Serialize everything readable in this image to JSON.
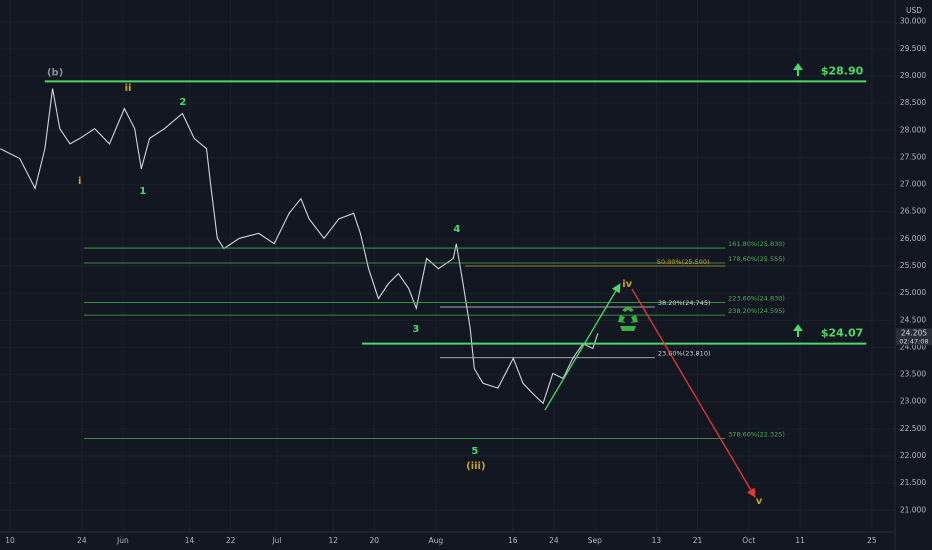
{
  "chart_data": {
    "type": "line",
    "currency": "USD",
    "color": "#d1d4dc",
    "x": [
      -1.9,
      1.9,
      4.9,
      6.8,
      8.3,
      9.7,
      11.7,
      13.6,
      16.5,
      19.4,
      22.3,
      24.3,
      25.6,
      27.2,
      30.1,
      33.6,
      35.9,
      38.3,
      39.2,
      40.4,
      41.7,
      44.7,
      48.5,
      51.5,
      54.4,
      56.7,
      58.3,
      61.2,
      64.1,
      67.0,
      68.3,
      69.9,
      71.8,
      73.8,
      75.7,
      77.7,
      79.2,
      81.2,
      83.5,
      86.4,
      87.0,
      88.3,
      89.7,
      90.5,
      92.2,
      95.1,
      98.1,
      100.0,
      101.9,
      103.9,
      105.8,
      107.8,
      109.7,
      111.7,
      113.6,
      114.6
    ],
    "values": [
      27.66,
      27.48,
      26.93,
      27.66,
      28.77,
      28.03,
      27.75,
      27.85,
      28.03,
      27.75,
      28.4,
      28.03,
      27.29,
      27.85,
      28.03,
      28.31,
      27.85,
      27.66,
      26.93,
      26.01,
      25.82,
      26.01,
      26.1,
      25.91,
      26.47,
      26.74,
      26.37,
      26.01,
      26.37,
      26.47,
      26.1,
      25.45,
      24.9,
      25.18,
      25.36,
      25.09,
      24.72,
      25.64,
      25.45,
      25.64,
      25.91,
      25.18,
      24.35,
      23.61,
      23.34,
      23.25,
      23.8,
      23.34,
      23.15,
      22.97,
      23.52,
      23.43,
      23.8,
      24.07,
      23.98,
      24.26
    ],
    "xlim": [
      -1.95,
      172.5
    ],
    "ylim": [
      20.6,
      30.4
    ],
    "xticks": [
      {
        "value": 0,
        "label": "10"
      },
      {
        "value": 14,
        "label": "24"
      },
      {
        "value": 22,
        "label": "Jun"
      },
      {
        "value": 35,
        "label": "14"
      },
      {
        "value": 43,
        "label": "22"
      },
      {
        "value": 52,
        "label": "Jul"
      },
      {
        "value": 63,
        "label": "12"
      },
      {
        "value": 71,
        "label": "20"
      },
      {
        "value": 83,
        "label": "Aug"
      },
      {
        "value": 98,
        "label": "16"
      },
      {
        "value": 106,
        "label": "24"
      },
      {
        "value": 114,
        "label": "Sep"
      },
      {
        "value": 126,
        "label": "13"
      },
      {
        "value": 134,
        "label": "21"
      },
      {
        "value": 144,
        "label": "Oct"
      },
      {
        "value": 154,
        "label": "11"
      },
      {
        "value": 168,
        "label": "25"
      }
    ],
    "yticks": [
      {
        "value": 21,
        "label": "21.000"
      },
      {
        "value": 21.5,
        "label": "21.500"
      },
      {
        "value": 22,
        "label": "22.000"
      },
      {
        "value": 22.5,
        "label": "22.500"
      },
      {
        "value": 23,
        "label": "23.000"
      },
      {
        "value": 23.5,
        "label": "23.500"
      },
      {
        "value": 24,
        "label": "24.000"
      },
      {
        "value": 24.5,
        "label": "24.500"
      },
      {
        "value": 25,
        "label": "25.000"
      },
      {
        "value": 25.5,
        "label": "25.500"
      },
      {
        "value": 26,
        "label": "26.000"
      },
      {
        "value": 26.5,
        "label": "26.500"
      },
      {
        "value": 27,
        "label": "27.000"
      },
      {
        "value": 27.5,
        "label": "27.500"
      },
      {
        "value": 28,
        "label": "28.000"
      },
      {
        "value": 28.5,
        "label": "28.500"
      },
      {
        "value": 29,
        "label": "29.000"
      },
      {
        "value": 29.5,
        "label": "29.500"
      },
      {
        "value": 30,
        "label": "30.000"
      }
    ],
    "grid": true,
    "key_levels": [
      {
        "value": 28.9,
        "label": "$28.90",
        "x": [
          6.8,
          166.9
        ]
      },
      {
        "value": 24.07,
        "label": "$24.07",
        "x": [
          68.6,
          166.9
        ]
      }
    ],
    "fib_levels": [
      {
        "value": 25.83,
        "label": "161.80%(25.830)",
        "x": [
          14.4,
          139.4
        ],
        "color": "#4caf50"
      },
      {
        "value": 25.555,
        "label": "178.60%(25.555)",
        "x": [
          14.4,
          139.4
        ],
        "color": "#4caf50"
      },
      {
        "value": 24.83,
        "label": "223.60%(24.830)",
        "x": [
          14.4,
          139.4
        ],
        "color": "#4caf50"
      },
      {
        "value": 24.595,
        "label": "238.20%(24.595)",
        "x": [
          14.4,
          139.4
        ],
        "color": "#4caf50"
      },
      {
        "value": 22.325,
        "label": "378.60%(22.325)",
        "x": [
          14.4,
          139.4
        ],
        "color": "#4caf50"
      },
      {
        "value": 25.5,
        "label": "50.00%(25.500)",
        "x": [
          88.7,
          139.4
        ],
        "color": "#c9a227"
      },
      {
        "value": 24.745,
        "label": "38.20%(24.745)",
        "x": [
          83.8,
          125.7
        ],
        "color": "#d1d4dc"
      },
      {
        "value": 23.81,
        "label": "23.60%(23.810)",
        "x": [
          83.8,
          125.7
        ],
        "color": "#d1d4dc"
      }
    ],
    "annotations": [
      {
        "text": "(b)",
        "x": 8.8,
        "y": 29.06,
        "color": "#8a8d96"
      },
      {
        "text": "ii",
        "x": 23.0,
        "y": 28.78,
        "color": "#c9a227"
      },
      {
        "text": "i",
        "x": 13.6,
        "y": 27.07,
        "color": "#c9a227"
      },
      {
        "text": "1",
        "x": 25.9,
        "y": 26.88,
        "color": "#4cd964"
      },
      {
        "text": "2",
        "x": 33.7,
        "y": 28.52,
        "color": "#4cd964"
      },
      {
        "text": "3",
        "x": 79.1,
        "y": 24.34,
        "color": "#4cd964"
      },
      {
        "text": "4",
        "x": 87.1,
        "y": 26.18,
        "color": "#4cd964"
      },
      {
        "text": "5",
        "x": 90.6,
        "y": 22.09,
        "color": "#4cd964"
      },
      {
        "text": "(iii)",
        "x": 90.8,
        "y": 21.82,
        "color": "#c9a227"
      },
      {
        "text": "iv",
        "x": 120.3,
        "y": 25.17,
        "color": "#c9a227"
      },
      {
        "text": "v",
        "x": 146.0,
        "y": 21.17,
        "color": "#c9a227"
      }
    ],
    "last_price": {
      "value": 24.205,
      "label": "24.205",
      "countdown": "02:47:08"
    }
  }
}
